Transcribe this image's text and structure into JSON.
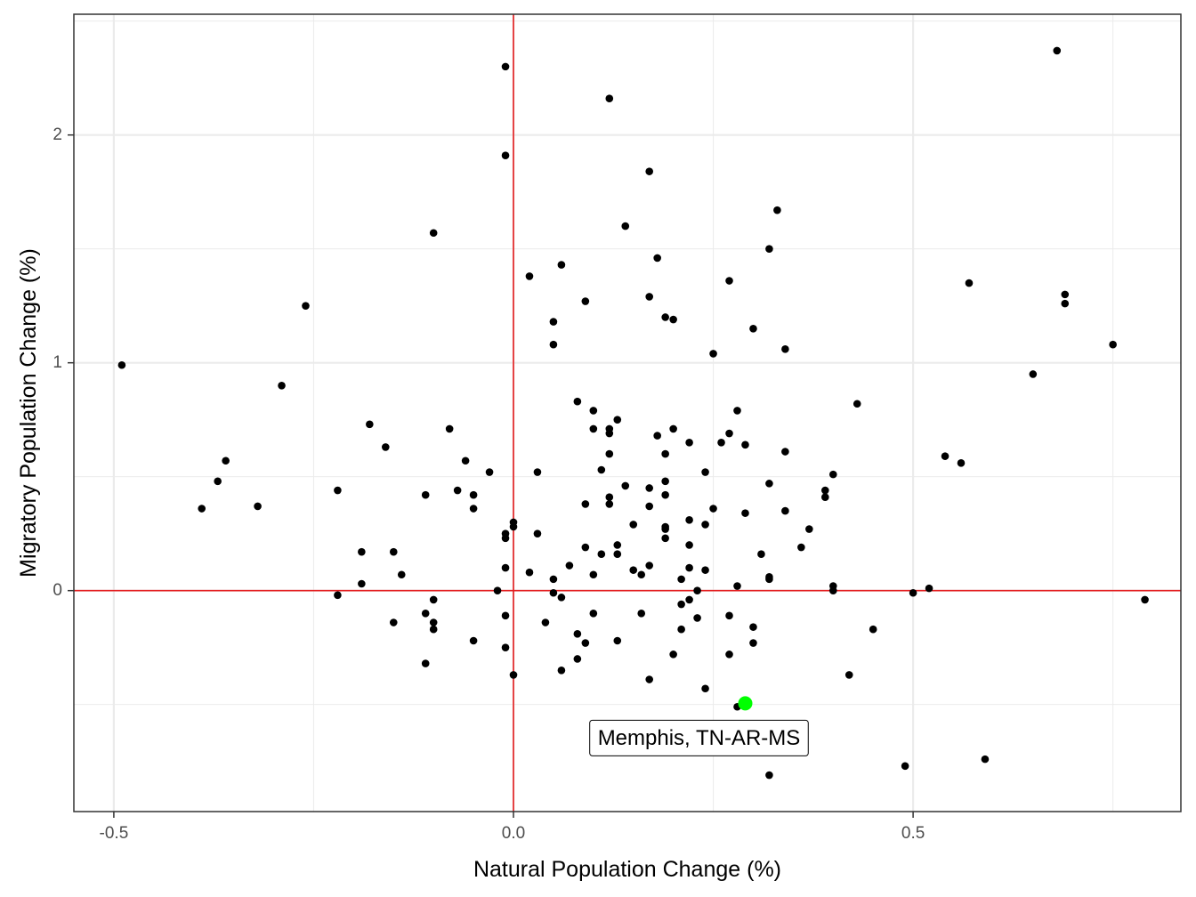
{
  "chart_data": {
    "type": "scatter",
    "title": "",
    "xlabel": "Natural Population Change (%)",
    "ylabel": "Migratory Population Change (%)",
    "xlim": [
      -0.55,
      0.835
    ],
    "ylim": [
      -0.97,
      2.53
    ],
    "x_ticks": [
      -0.5,
      0.0,
      0.5
    ],
    "x_tick_labels": [
      "-0.5",
      "0.0",
      "0.5"
    ],
    "y_ticks": [
      0,
      1,
      2
    ],
    "y_tick_labels": [
      "0",
      "1",
      "2"
    ],
    "grid": true,
    "legend": "none",
    "reference_lines": {
      "x": 0,
      "y": 0,
      "color": "#e41a1c"
    },
    "colors": {
      "points": "#000000",
      "highlight": "#00ff00",
      "reference": "#e41a1c",
      "grid": "#ebebeb"
    },
    "highlight": {
      "x": 0.29,
      "y": -0.495,
      "label": "Memphis, TN-AR-MS"
    },
    "points": [
      [
        -0.49,
        0.99
      ],
      [
        -0.39,
        0.36
      ],
      [
        -0.37,
        0.48
      ],
      [
        -0.36,
        0.57
      ],
      [
        -0.32,
        0.37
      ],
      [
        -0.29,
        0.9
      ],
      [
        -0.26,
        1.25
      ],
      [
        -0.22,
        0.44
      ],
      [
        -0.22,
        -0.02
      ],
      [
        -0.19,
        0.17
      ],
      [
        -0.19,
        0.03
      ],
      [
        -0.18,
        0.73
      ],
      [
        -0.16,
        0.63
      ],
      [
        -0.15,
        0.17
      ],
      [
        -0.15,
        -0.14
      ],
      [
        -0.14,
        0.07
      ],
      [
        -0.11,
        0.42
      ],
      [
        -0.11,
        -0.1
      ],
      [
        -0.11,
        -0.32
      ],
      [
        -0.1,
        1.57
      ],
      [
        -0.1,
        -0.04
      ],
      [
        -0.1,
        -0.14
      ],
      [
        -0.1,
        -0.17
      ],
      [
        -0.08,
        0.71
      ],
      [
        -0.07,
        0.44
      ],
      [
        -0.06,
        0.57
      ],
      [
        -0.05,
        0.42
      ],
      [
        -0.05,
        0.36
      ],
      [
        -0.05,
        -0.22
      ],
      [
        -0.03,
        0.52
      ],
      [
        -0.02,
        0.0
      ],
      [
        -0.01,
        2.3
      ],
      [
        -0.01,
        1.91
      ],
      [
        -0.01,
        0.25
      ],
      [
        -0.01,
        0.23
      ],
      [
        -0.01,
        0.1
      ],
      [
        -0.01,
        -0.11
      ],
      [
        -0.01,
        -0.25
      ],
      [
        0.0,
        0.3
      ],
      [
        0.0,
        0.28
      ],
      [
        0.0,
        -0.37
      ],
      [
        0.02,
        1.38
      ],
      [
        0.02,
        0.08
      ],
      [
        0.03,
        0.52
      ],
      [
        0.03,
        0.25
      ],
      [
        0.04,
        -0.14
      ],
      [
        0.05,
        1.18
      ],
      [
        0.05,
        1.08
      ],
      [
        0.05,
        0.05
      ],
      [
        0.05,
        -0.01
      ],
      [
        0.06,
        1.43
      ],
      [
        0.06,
        -0.03
      ],
      [
        0.06,
        -0.35
      ],
      [
        0.07,
        0.11
      ],
      [
        0.08,
        0.83
      ],
      [
        0.08,
        -0.19
      ],
      [
        0.08,
        -0.3
      ],
      [
        0.09,
        1.27
      ],
      [
        0.09,
        0.38
      ],
      [
        0.09,
        0.19
      ],
      [
        0.09,
        -0.23
      ],
      [
        0.1,
        0.79
      ],
      [
        0.1,
        0.71
      ],
      [
        0.1,
        0.07
      ],
      [
        0.1,
        -0.1
      ],
      [
        0.11,
        0.53
      ],
      [
        0.11,
        0.16
      ],
      [
        0.12,
        2.16
      ],
      [
        0.12,
        0.71
      ],
      [
        0.12,
        0.69
      ],
      [
        0.12,
        0.6
      ],
      [
        0.12,
        0.41
      ],
      [
        0.12,
        0.38
      ],
      [
        0.13,
        0.75
      ],
      [
        0.13,
        0.2
      ],
      [
        0.13,
        0.16
      ],
      [
        0.13,
        -0.22
      ],
      [
        0.14,
        1.6
      ],
      [
        0.14,
        0.46
      ],
      [
        0.15,
        0.29
      ],
      [
        0.15,
        0.09
      ],
      [
        0.16,
        0.07
      ],
      [
        0.16,
        -0.1
      ],
      [
        0.17,
        1.84
      ],
      [
        0.17,
        1.29
      ],
      [
        0.17,
        0.45
      ],
      [
        0.17,
        0.37
      ],
      [
        0.17,
        0.11
      ],
      [
        0.17,
        -0.39
      ],
      [
        0.18,
        1.46
      ],
      [
        0.18,
        0.68
      ],
      [
        0.19,
        1.2
      ],
      [
        0.19,
        0.6
      ],
      [
        0.19,
        0.48
      ],
      [
        0.19,
        0.42
      ],
      [
        0.19,
        0.28
      ],
      [
        0.19,
        0.27
      ],
      [
        0.19,
        0.23
      ],
      [
        0.2,
        1.19
      ],
      [
        0.2,
        0.71
      ],
      [
        0.2,
        -0.28
      ],
      [
        0.21,
        0.05
      ],
      [
        0.21,
        -0.06
      ],
      [
        0.21,
        -0.17
      ],
      [
        0.22,
        0.65
      ],
      [
        0.22,
        0.31
      ],
      [
        0.22,
        0.2
      ],
      [
        0.22,
        0.1
      ],
      [
        0.22,
        -0.04
      ],
      [
        0.23,
        0.0
      ],
      [
        0.23,
        -0.12
      ],
      [
        0.24,
        0.52
      ],
      [
        0.24,
        0.29
      ],
      [
        0.24,
        0.09
      ],
      [
        0.24,
        -0.43
      ],
      [
        0.25,
        1.04
      ],
      [
        0.25,
        0.36
      ],
      [
        0.26,
        0.65
      ],
      [
        0.27,
        1.36
      ],
      [
        0.27,
        0.69
      ],
      [
        0.27,
        -0.11
      ],
      [
        0.27,
        -0.28
      ],
      [
        0.28,
        0.79
      ],
      [
        0.28,
        0.02
      ],
      [
        0.28,
        -0.51
      ],
      [
        0.29,
        0.64
      ],
      [
        0.29,
        0.34
      ],
      [
        0.3,
        1.15
      ],
      [
        0.3,
        -0.16
      ],
      [
        0.3,
        -0.23
      ],
      [
        0.31,
        0.16
      ],
      [
        0.32,
        1.5
      ],
      [
        0.32,
        0.47
      ],
      [
        0.32,
        0.06
      ],
      [
        0.32,
        0.05
      ],
      [
        0.32,
        -0.81
      ],
      [
        0.33,
        1.67
      ],
      [
        0.34,
        1.06
      ],
      [
        0.34,
        0.61
      ],
      [
        0.34,
        0.35
      ],
      [
        0.36,
        0.19
      ],
      [
        0.37,
        0.27
      ],
      [
        0.39,
        0.44
      ],
      [
        0.39,
        0.41
      ],
      [
        0.4,
        0.51
      ],
      [
        0.4,
        0.02
      ],
      [
        0.4,
        0.0
      ],
      [
        0.42,
        -0.37
      ],
      [
        0.43,
        0.82
      ],
      [
        0.45,
        -0.17
      ],
      [
        0.49,
        -0.77
      ],
      [
        0.5,
        -0.01
      ],
      [
        0.52,
        0.01
      ],
      [
        0.54,
        0.59
      ],
      [
        0.56,
        0.56
      ],
      [
        0.57,
        1.35
      ],
      [
        0.59,
        -0.74
      ],
      [
        0.65,
        0.95
      ],
      [
        0.68,
        2.37
      ],
      [
        0.69,
        1.3
      ],
      [
        0.69,
        1.26
      ],
      [
        0.75,
        1.08
      ],
      [
        0.79,
        -0.04
      ]
    ]
  }
}
